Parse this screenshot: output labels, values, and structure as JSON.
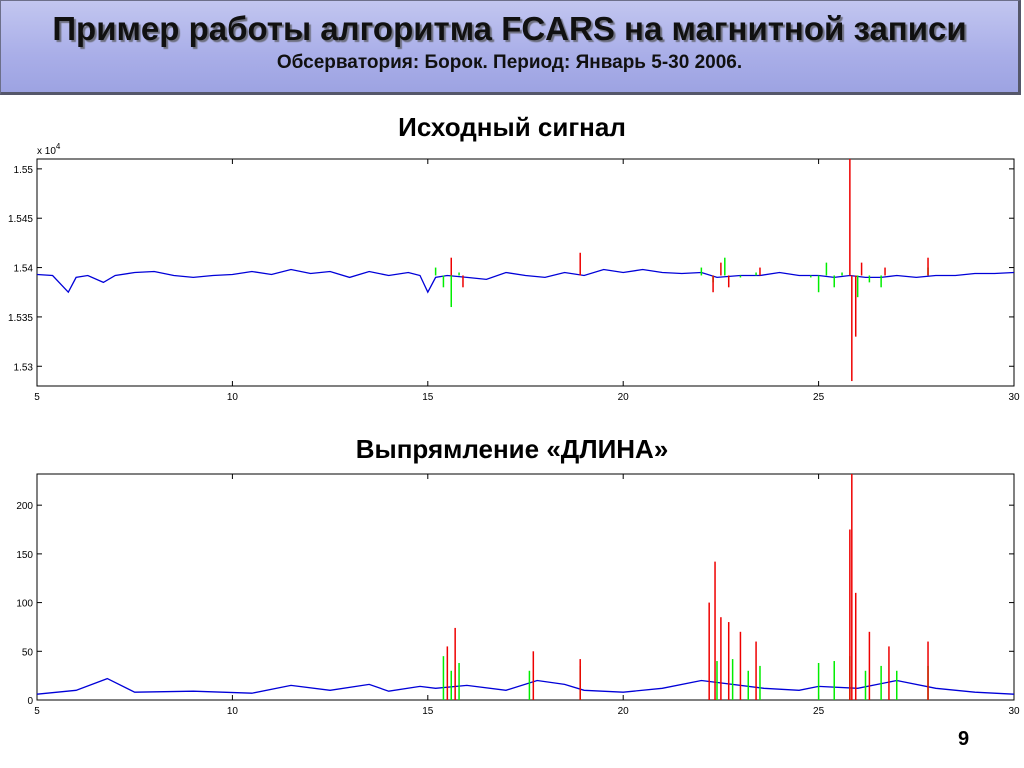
{
  "slide": {
    "title": "Пример работы алгоритма FCARS на магнитной записи",
    "subtitle": "Обсерватория: Борок. Период: Январь  5-30  2006.",
    "page_number": "9"
  },
  "chart_data": [
    {
      "type": "line",
      "title": "Исходный сигнал",
      "axis_multiplier": {
        "base": "x 10",
        "exponent": "4"
      },
      "xlim": [
        5,
        30
      ],
      "ylim": [
        1.528,
        1.551
      ],
      "x_ticks": [
        "5",
        "10",
        "15",
        "20",
        "25",
        "30"
      ],
      "y_ticks": [
        "1.53",
        "1.535",
        "1.54",
        "1.545",
        "1.55"
      ],
      "y_tick_values": [
        1.53,
        1.535,
        1.54,
        1.545,
        1.55
      ],
      "grid": false,
      "series_colors": {
        "normal": "#0000d8",
        "medium": "#00ee00",
        "strong": "#ee0000"
      },
      "series": [
        {
          "class": "normal",
          "x": [
            5.0,
            5.4,
            5.8,
            6.0,
            6.3,
            6.7,
            7.0,
            7.5,
            8.0,
            8.5,
            9.0,
            9.5,
            10.0,
            10.5,
            11.0,
            11.5,
            12.0,
            12.5,
            13.0,
            13.5,
            14.0,
            14.5,
            14.8,
            15.0,
            15.2,
            15.5,
            16.0,
            16.5,
            17.0,
            17.5,
            18.0,
            18.5,
            19.0,
            19.5,
            20.0,
            20.5,
            21.0,
            21.5,
            22.0,
            22.4,
            23.0,
            23.5,
            24.0,
            24.5,
            25.0,
            25.4,
            25.8,
            26.2,
            26.6,
            27.0,
            27.5,
            28.0,
            28.5,
            29.0,
            29.5,
            30.0
          ],
          "y": [
            1.5393,
            1.5392,
            1.5375,
            1.539,
            1.5392,
            1.5385,
            1.5392,
            1.5395,
            1.5396,
            1.5392,
            1.539,
            1.5392,
            1.5393,
            1.5396,
            1.5393,
            1.5398,
            1.5394,
            1.5396,
            1.539,
            1.5396,
            1.5392,
            1.5395,
            1.5392,
            1.5375,
            1.539,
            1.5392,
            1.539,
            1.5388,
            1.5395,
            1.5392,
            1.539,
            1.5395,
            1.5392,
            1.5398,
            1.5395,
            1.5398,
            1.5395,
            1.5394,
            1.5395,
            1.539,
            1.5392,
            1.5392,
            1.5395,
            1.5392,
            1.5392,
            1.539,
            1.5392,
            1.539,
            1.539,
            1.5392,
            1.539,
            1.5392,
            1.5392,
            1.5394,
            1.5394,
            1.5395
          ]
        },
        {
          "class": "medium",
          "x": [
            15.2,
            15.4,
            15.6,
            15.8,
            22.0,
            22.3,
            22.6,
            23.0,
            23.4,
            24.8,
            25.0,
            25.2,
            25.4,
            25.6,
            26.0,
            26.3,
            26.6,
            27.8
          ],
          "y": [
            1.54,
            1.538,
            1.536,
            1.5395,
            1.54,
            1.5385,
            1.541,
            1.539,
            1.5395,
            1.539,
            1.5375,
            1.5405,
            1.538,
            1.5395,
            1.537,
            1.5385,
            1.538,
            1.54
          ]
        },
        {
          "class": "strong",
          "x": [
            15.6,
            15.9,
            18.9,
            22.3,
            22.5,
            22.7,
            23.5,
            25.8,
            25.85,
            25.95,
            26.1,
            26.7,
            27.8
          ],
          "y": [
            1.541,
            1.538,
            1.5415,
            1.5375,
            1.5405,
            1.538,
            1.54,
            1.551,
            1.5285,
            1.533,
            1.5405,
            1.54,
            1.541
          ]
        }
      ]
    },
    {
      "type": "line",
      "title": "Выпрямление «ДЛИНА»",
      "xlim": [
        5,
        30
      ],
      "ylim": [
        0,
        232
      ],
      "x_ticks": [
        "5",
        "10",
        "15",
        "20",
        "25",
        "30"
      ],
      "y_ticks": [
        "0",
        "50",
        "100",
        "150",
        "200"
      ],
      "y_tick_values": [
        0,
        50,
        100,
        150,
        200
      ],
      "grid": false,
      "series_colors": {
        "normal": "#0000d8",
        "medium": "#00ee00",
        "strong": "#ee0000"
      },
      "series": [
        {
          "class": "normal",
          "x": [
            5.0,
            6.0,
            6.8,
            7.5,
            9.0,
            10.5,
            11.5,
            12.5,
            13.5,
            14.0,
            14.8,
            15.2,
            16.0,
            17.0,
            17.8,
            18.5,
            19.0,
            20.0,
            21.0,
            22.0,
            23.6,
            24.5,
            25.0,
            26.0,
            27.0,
            28.0,
            29.0,
            30.0
          ],
          "y": [
            6,
            10,
            22,
            8,
            9,
            7,
            15,
            10,
            16,
            9,
            14,
            12,
            15,
            10,
            20,
            16,
            10,
            8,
            12,
            20,
            12,
            10,
            14,
            12,
            20,
            12,
            8,
            6
          ]
        },
        {
          "class": "medium",
          "x": [
            15.4,
            15.6,
            15.8,
            17.6,
            18.9,
            22.4,
            22.8,
            23.2,
            23.5,
            25.0,
            25.4,
            25.8,
            26.2,
            26.6,
            27.0,
            27.8
          ],
          "y": [
            45,
            30,
            38,
            30,
            35,
            40,
            42,
            30,
            35,
            38,
            40,
            45,
            30,
            35,
            30,
            35
          ]
        },
        {
          "class": "strong",
          "x": [
            15.5,
            15.7,
            17.7,
            18.9,
            22.2,
            22.35,
            22.5,
            22.7,
            23.0,
            23.4,
            25.8,
            25.85,
            25.95,
            26.3,
            26.8,
            27.8
          ],
          "y": [
            55,
            74,
            50,
            42,
            100,
            142,
            85,
            80,
            70,
            60,
            175,
            232,
            110,
            70,
            55,
            60
          ]
        }
      ]
    }
  ]
}
